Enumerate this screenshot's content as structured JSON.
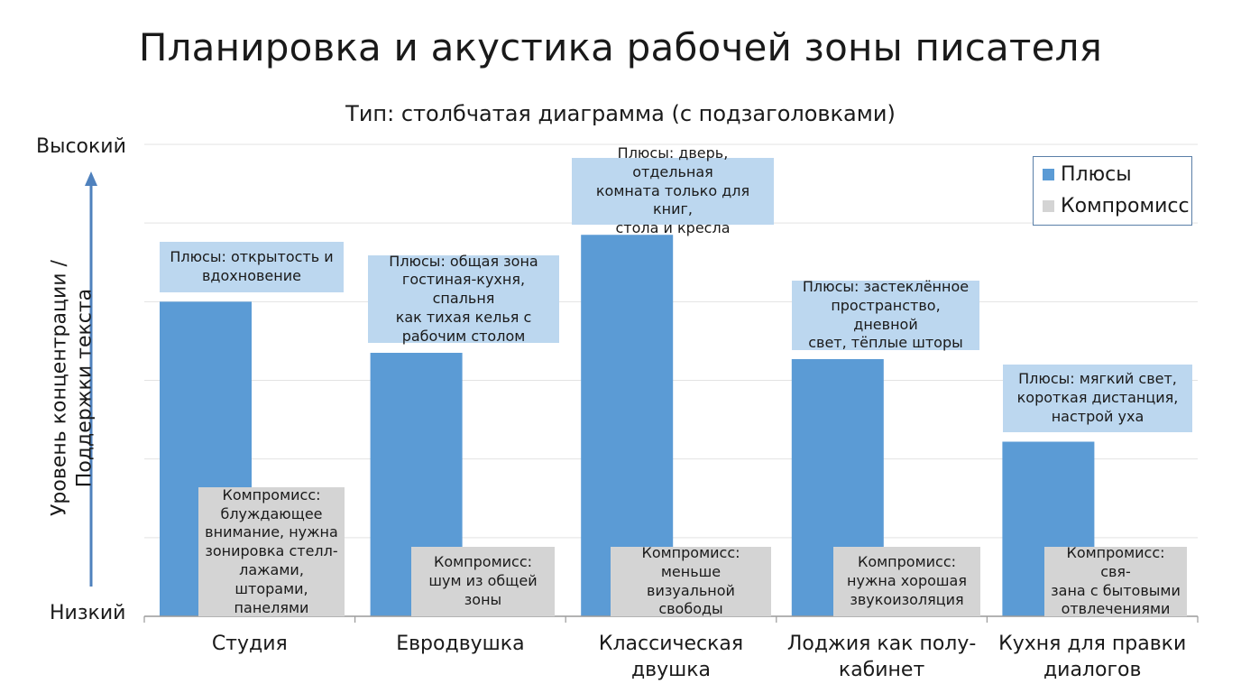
{
  "chart_data": {
    "type": "bar",
    "title": "Планировка и акустика рабочей зоны писателя",
    "subtitle": "Тип: столбчатая диаграмма (с подзаголовками)",
    "ylabel": "Уровень концентрации /\nПоддержки текста",
    "y_high_label": "Высокий",
    "y_low_label": "Низкий",
    "ylim": [
      0,
      6
    ],
    "grid": true,
    "legend_position": "top-right",
    "legend": [
      {
        "name": "Плюсы",
        "color": "#5b9bd5"
      },
      {
        "name": "Компромисс",
        "color": "#d4d4d4"
      }
    ],
    "categories": [
      "Студия",
      "Евродвушка",
      "Классическая\nдвушка",
      "Лоджия как полу-\nкабинет",
      "Кухня для правки\nдиалогов"
    ],
    "values": [
      4.0,
      3.35,
      4.85,
      3.27,
      2.22
    ],
    "bar_color": "#5b9bd5",
    "pros_annotations": [
      "Плюсы: открытость и\nвдохновение",
      "Плюсы: общая зона\nгостиная-кухня, спальня\nкак тихая келья с\nрабочим столом",
      "Плюсы: дверь, отдельная\nкомната только для книг,\nстола и кресла",
      "Плюсы: застеклённое\nпространство, дневной\nсвет, тёплые шторы",
      "Плюсы: мягкий свет,\nкороткая дистанция,\nнастрой уха"
    ],
    "cons_annotations": [
      "Компромисс:\nблуждающее\nвнимание, нужна\nзонировка стелл-\nлажами, шторами,\nпанелями",
      "Компромисс:\nшум из общей\nзоны",
      "Компромисс:\nменьше визуальной\nсвободы",
      "Компромисс:\nнужна хорошая\nзвукоизоляция",
      "Компромисс: свя-\nзана с бытовыми\nотвлечениями"
    ]
  }
}
